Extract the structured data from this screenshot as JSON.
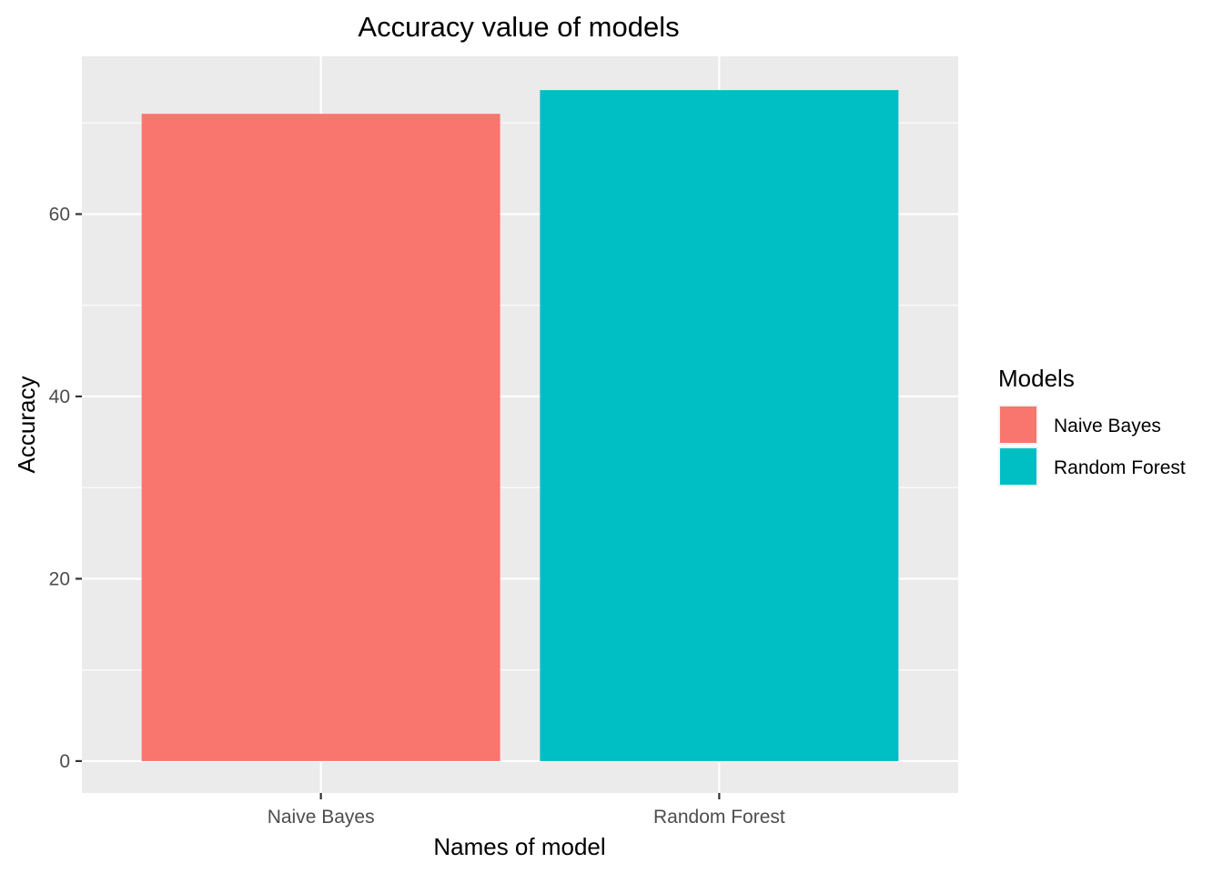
{
  "chart_data": {
    "type": "bar",
    "title": "Accuracy value of models",
    "xlabel": "Names of model",
    "ylabel": "Accuracy",
    "categories": [
      "Naive Bayes",
      "Random Forest"
    ],
    "values": [
      71.0,
      73.6
    ],
    "ylim": [
      -3.5,
      77.3
    ],
    "yticks": [
      0,
      20,
      40,
      60
    ],
    "ytick_labels": [
      "0",
      "20",
      "40",
      "60"
    ],
    "grid": true,
    "legend": {
      "title": "Models",
      "position": "right",
      "items": [
        {
          "label": "Naive Bayes",
          "color": "#F8766D"
        },
        {
          "label": "Random Forest",
          "color": "#00BFC4"
        }
      ]
    },
    "colors": {
      "Naive Bayes": "#F8766D",
      "Random Forest": "#00BFC4",
      "panel": "#EBEBEB",
      "grid": "#FFFFFF"
    }
  }
}
